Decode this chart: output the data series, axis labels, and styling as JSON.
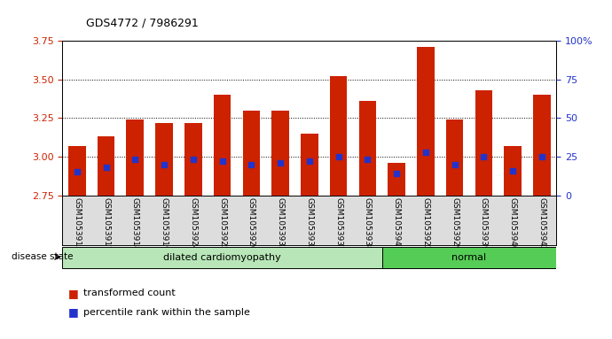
{
  "title": "GDS4772 / 7986291",
  "samples": [
    "GSM1053915",
    "GSM1053917",
    "GSM1053918",
    "GSM1053919",
    "GSM1053924",
    "GSM1053925",
    "GSM1053926",
    "GSM1053933",
    "GSM1053935",
    "GSM1053937",
    "GSM1053938",
    "GSM1053941",
    "GSM1053922",
    "GSM1053929",
    "GSM1053939",
    "GSM1053940",
    "GSM1053942"
  ],
  "transformed_count": [
    3.07,
    3.13,
    3.24,
    3.22,
    3.22,
    3.4,
    3.3,
    3.3,
    3.15,
    3.52,
    3.36,
    2.96,
    3.71,
    3.24,
    3.43,
    3.07,
    3.4
  ],
  "percentile_rank": [
    15,
    18,
    23,
    20,
    23,
    22,
    20,
    21,
    22,
    25,
    23,
    14,
    28,
    20,
    25,
    16,
    25
  ],
  "groups": [
    {
      "name": "dilated cardiomyopathy",
      "start": 0,
      "end": 11,
      "color": "#b8e6b8"
    },
    {
      "name": "normal",
      "start": 11,
      "end": 17,
      "color": "#55cc55"
    }
  ],
  "ylim_left": [
    2.75,
    3.75
  ],
  "ylim_right": [
    0,
    100
  ],
  "yticks_left": [
    2.75,
    3.0,
    3.25,
    3.5,
    3.75
  ],
  "yticks_right": [
    0,
    25,
    50,
    75,
    100
  ],
  "bar_color": "#cc2200",
  "dot_color": "#2233cc",
  "bar_bottom": 2.75,
  "background_color": "#ffffff",
  "tick_label_color_left": "#cc2200",
  "tick_label_color_right": "#2233cc",
  "legend_red_label": "transformed count",
  "legend_blue_label": "percentile rank within the sample",
  "disease_state_label": "disease state",
  "bar_width": 0.6,
  "dotted_lines": [
    3.0,
    3.25,
    3.5
  ],
  "right_tick_labels": [
    "0",
    "25",
    "50",
    "75",
    "100%"
  ]
}
